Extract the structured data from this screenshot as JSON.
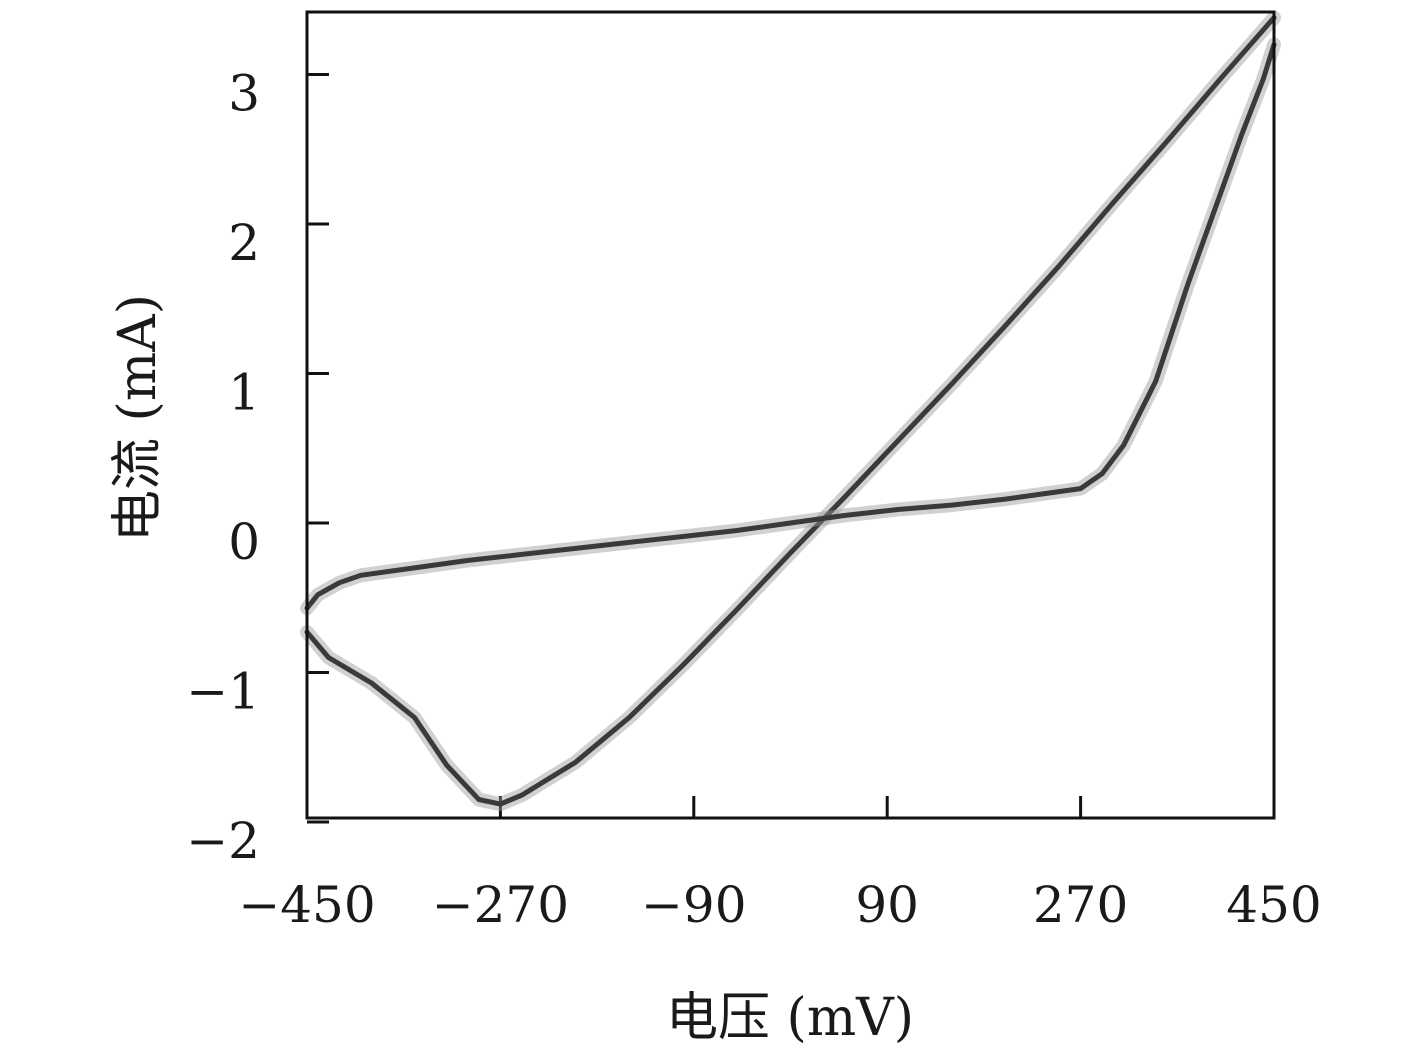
{
  "chart_data": {
    "type": "line",
    "xlabel": "电压 (mV)",
    "ylabel": "电流 (mA)",
    "xlim": [
      -450,
      450
    ],
    "ylim": [
      -2,
      3.4
    ],
    "xticks": [
      -450,
      -270,
      -90,
      90,
      270,
      450
    ],
    "xtick_labels": [
      "−450",
      "−270",
      "−90",
      "90",
      "270",
      "450"
    ],
    "yticks": [
      -2,
      -1,
      0,
      1,
      2,
      3
    ],
    "ytick_labels": [
      "−2",
      "−1",
      "0",
      "1",
      "2",
      "3"
    ],
    "grid": false,
    "line_color": "#3a3a3a",
    "series": [
      {
        "x": [
          450,
          400,
          350,
          300,
          250,
          200,
          150,
          100,
          50,
          0,
          -50,
          -100,
          -150,
          -200,
          -250,
          -270,
          -290,
          -320,
          -350,
          -390,
          -430,
          -450
        ],
        "y": [
          3.38,
          2.97,
          2.55,
          2.14,
          1.72,
          1.32,
          0.93,
          0.55,
          0.17,
          -0.2,
          -0.58,
          -0.95,
          -1.3,
          -1.6,
          -1.82,
          -1.88,
          -1.85,
          -1.62,
          -1.3,
          -1.07,
          -0.9,
          -0.73
        ]
      },
      {
        "x": [
          -450,
          -440,
          -420,
          -400,
          -350,
          -300,
          -250,
          -200,
          -150,
          -100,
          -50,
          0,
          50,
          100,
          150,
          200,
          230,
          250,
          270,
          290,
          310,
          340,
          370,
          400,
          420,
          440,
          450
        ],
        "y": [
          -0.57,
          -0.48,
          -0.4,
          -0.35,
          -0.3,
          -0.25,
          -0.21,
          -0.17,
          -0.13,
          -0.09,
          -0.05,
          0.0,
          0.05,
          0.09,
          0.12,
          0.16,
          0.19,
          0.21,
          0.23,
          0.33,
          0.52,
          0.95,
          1.6,
          2.2,
          2.6,
          2.97,
          3.2
        ]
      }
    ]
  }
}
